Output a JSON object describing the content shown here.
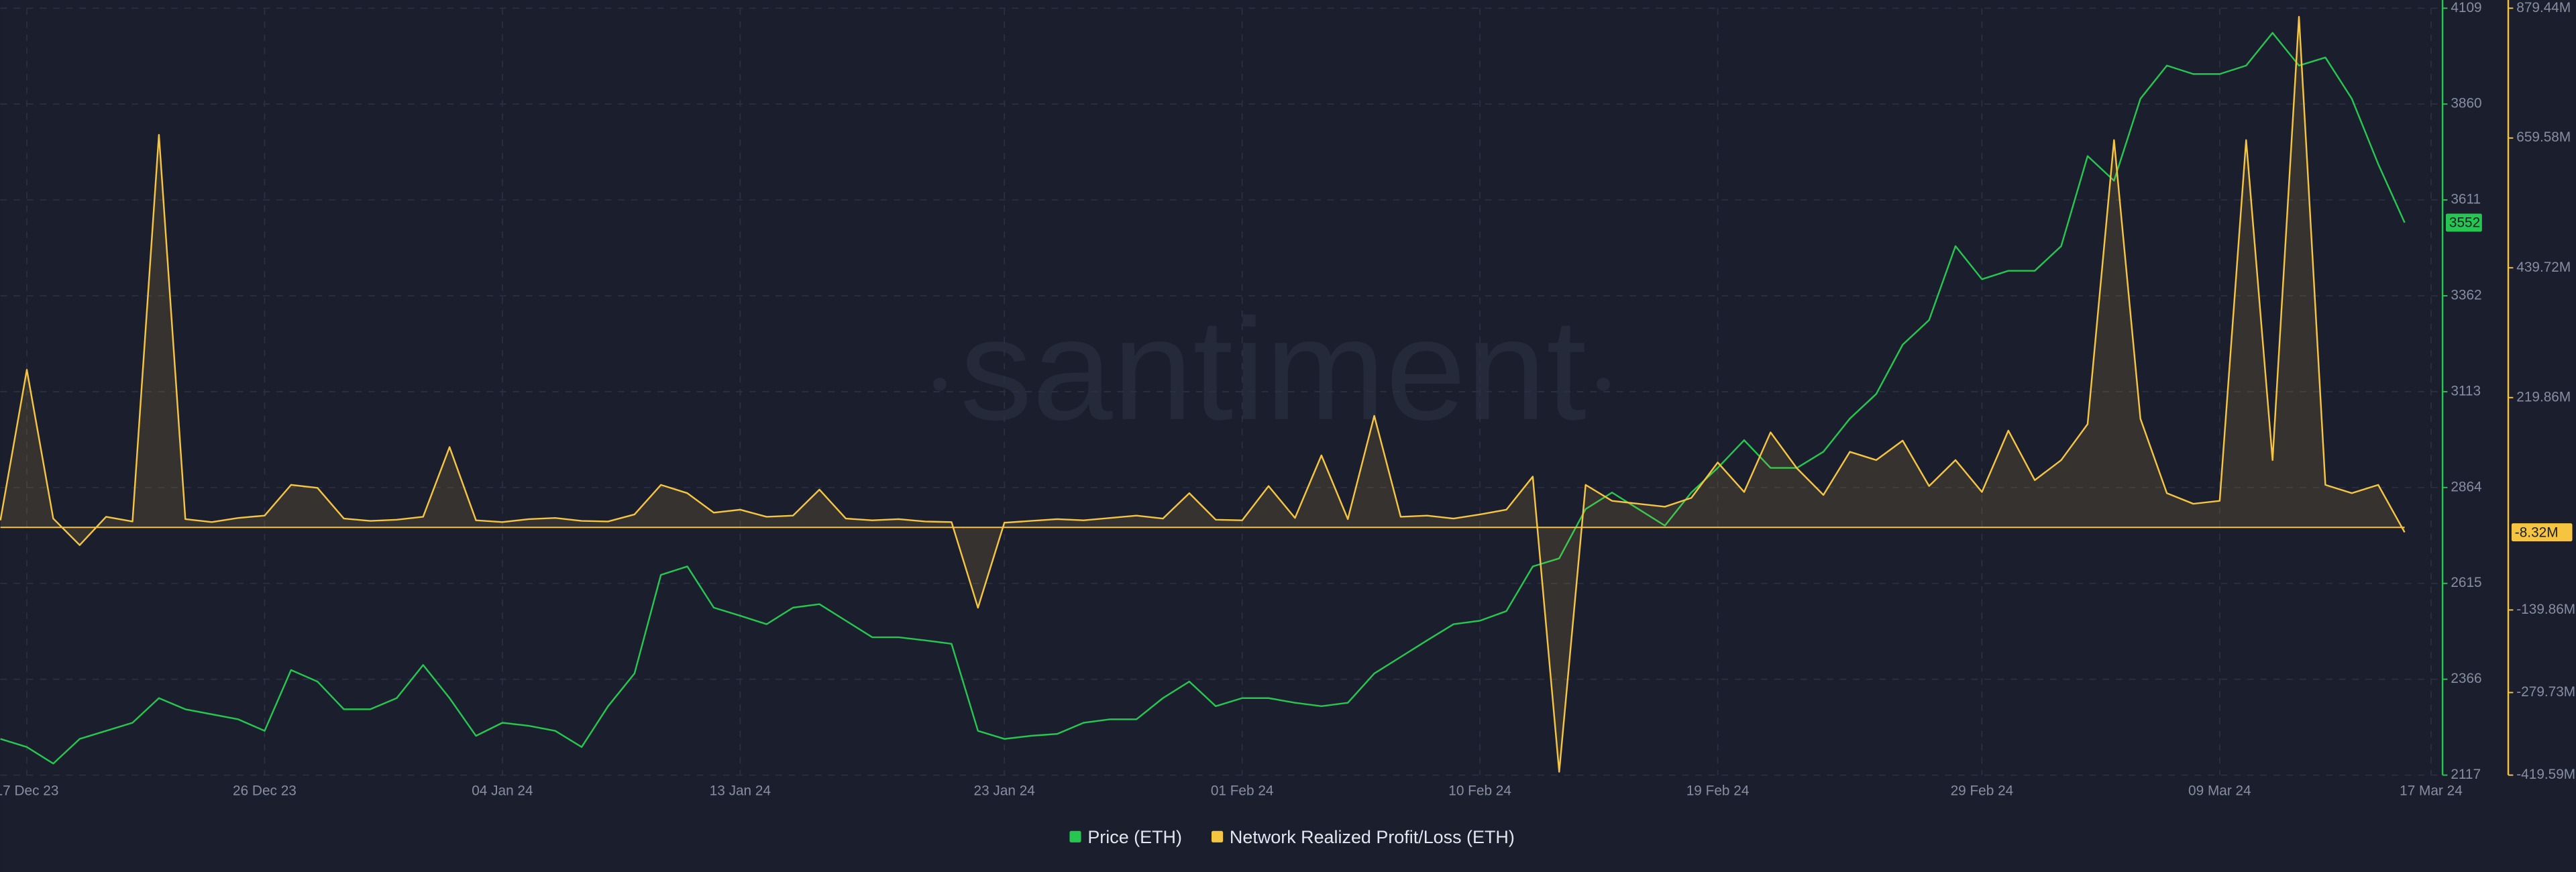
{
  "chart_data": {
    "type": "line",
    "watermark": "santiment",
    "x": [
      "2023-12-16",
      "2023-12-17",
      "2023-12-18",
      "2023-12-19",
      "2023-12-20",
      "2023-12-21",
      "2023-12-22",
      "2023-12-23",
      "2023-12-24",
      "2023-12-25",
      "2023-12-26",
      "2023-12-27",
      "2023-12-28",
      "2023-12-29",
      "2023-12-30",
      "2023-12-31",
      "2024-01-01",
      "2024-01-02",
      "2024-01-03",
      "2024-01-04",
      "2024-01-05",
      "2024-01-06",
      "2024-01-07",
      "2024-01-08",
      "2024-01-09",
      "2024-01-10",
      "2024-01-11",
      "2024-01-12",
      "2024-01-13",
      "2024-01-14",
      "2024-01-15",
      "2024-01-16",
      "2024-01-17",
      "2024-01-18",
      "2024-01-19",
      "2024-01-20",
      "2024-01-21",
      "2024-01-22",
      "2024-01-23",
      "2024-01-24",
      "2024-01-25",
      "2024-01-26",
      "2024-01-27",
      "2024-01-28",
      "2024-01-29",
      "2024-01-30",
      "2024-01-31",
      "2024-02-01",
      "2024-02-02",
      "2024-02-03",
      "2024-02-04",
      "2024-02-05",
      "2024-02-06",
      "2024-02-07",
      "2024-02-08",
      "2024-02-09",
      "2024-02-10",
      "2024-02-11",
      "2024-02-12",
      "2024-02-13",
      "2024-02-14",
      "2024-02-15",
      "2024-02-16",
      "2024-02-17",
      "2024-02-18",
      "2024-02-19",
      "2024-02-20",
      "2024-02-21",
      "2024-02-22",
      "2024-02-23",
      "2024-02-24",
      "2024-02-25",
      "2024-02-26",
      "2024-02-27",
      "2024-02-28",
      "2024-02-29",
      "2024-03-01",
      "2024-03-02",
      "2024-03-03",
      "2024-03-04",
      "2024-03-05",
      "2024-03-06",
      "2024-03-07",
      "2024-03-08",
      "2024-03-09",
      "2024-03-10",
      "2024-03-11",
      "2024-03-12",
      "2024-03-13",
      "2024-03-14",
      "2024-03-15",
      "2024-03-16"
    ],
    "xlim": [
      "2023-12-16",
      "2024-03-17"
    ],
    "xticks": [
      {
        "value": "2023-12-17",
        "label": "17 Dec 23"
      },
      {
        "value": "2023-12-26",
        "label": "26 Dec 23"
      },
      {
        "value": "2024-01-04",
        "label": "04 Jan 24"
      },
      {
        "value": "2024-01-13",
        "label": "13 Jan 24"
      },
      {
        "value": "2024-01-23",
        "label": "23 Jan 24"
      },
      {
        "value": "2024-02-01",
        "label": "01 Feb 24"
      },
      {
        "value": "2024-02-10",
        "label": "10 Feb 24"
      },
      {
        "value": "2024-02-19",
        "label": "19 Feb 24"
      },
      {
        "value": "2024-02-29",
        "label": "29 Feb 24"
      },
      {
        "value": "2024-03-09",
        "label": "09 Mar 24"
      },
      {
        "value": "2024-03-17",
        "label": "17 Mar 24"
      }
    ],
    "ylim": [
      2117,
      4109
    ],
    "yticks": [
      2117,
      2366,
      2615,
      2864,
      3113,
      3362,
      3611,
      3860,
      4109
    ],
    "y2lim": [
      -419.59,
      879.44
    ],
    "y2ticks": [
      {
        "value": -419.59,
        "label": "-419.59M"
      },
      {
        "value": -279.73,
        "label": "-279.73M"
      },
      {
        "value": -139.86,
        "label": "-139.86M"
      },
      {
        "value": 219.86,
        "label": "219.86M"
      },
      {
        "value": 439.72,
        "label": "439.72M"
      },
      {
        "value": 659.58,
        "label": "659.58M"
      },
      {
        "value": 879.44,
        "label": "879.44M"
      }
    ],
    "grid": true,
    "legend": "bottom",
    "series": [
      {
        "name": "Price (ETH)",
        "color": "#26c650",
        "axis": "y",
        "last_label": "3552",
        "values": [
          2211,
          2190,
          2147,
          2211,
          2232,
          2253,
          2317,
          2288,
          2275,
          2262,
          2232,
          2390,
          2360,
          2288,
          2288,
          2317,
          2403,
          2317,
          2219,
          2253,
          2245,
          2232,
          2190,
          2296,
          2381,
          2637,
          2659,
          2552,
          2531,
          2509,
          2552,
          2561,
          2518,
          2475,
          2475,
          2467,
          2458,
          2232,
          2211,
          2219,
          2224,
          2253,
          2262,
          2262,
          2317,
          2360,
          2296,
          2317,
          2317,
          2305,
          2296,
          2305,
          2381,
          2424,
          2467,
          2509,
          2518,
          2543,
          2659,
          2680,
          2808,
          2851,
          2808,
          2765,
          2851,
          2915,
          2987,
          2915,
          2915,
          2957,
          3043,
          3107,
          3235,
          3299,
          3491,
          3405,
          3427,
          3427,
          3491,
          3725,
          3661,
          3874,
          3960,
          3938,
          3938,
          3960,
          4045,
          3960,
          3981,
          3874,
          3704,
          3552
        ]
      },
      {
        "name": "Network Realized Profit/Loss (ETH)",
        "color": "#f5c542",
        "axis": "y2",
        "last_label": "-8.32M",
        "values": [
          12,
          267,
          15,
          -30,
          18,
          10,
          665,
          14,
          9,
          16,
          20,
          72,
          67,
          15,
          11,
          13,
          18,
          136,
          12,
          9,
          14,
          16,
          11,
          10,
          22,
          72,
          58,
          25,
          30,
          18,
          20,
          64,
          15,
          12,
          14,
          10,
          9,
          -136,
          8,
          11,
          14,
          12,
          16,
          20,
          15,
          58,
          13,
          12,
          70,
          16,
          122,
          14,
          189,
          18,
          20,
          15,
          22,
          30,
          86,
          -414,
          72,
          45,
          40,
          35,
          50,
          110,
          60,
          161,
          100,
          55,
          128,
          114,
          147,
          70,
          114,
          60,
          164,
          80,
          114,
          175,
          656,
          184,
          58,
          40,
          45,
          656,
          114,
          865,
          72,
          58,
          72,
          -8.32
        ]
      }
    ]
  }
}
